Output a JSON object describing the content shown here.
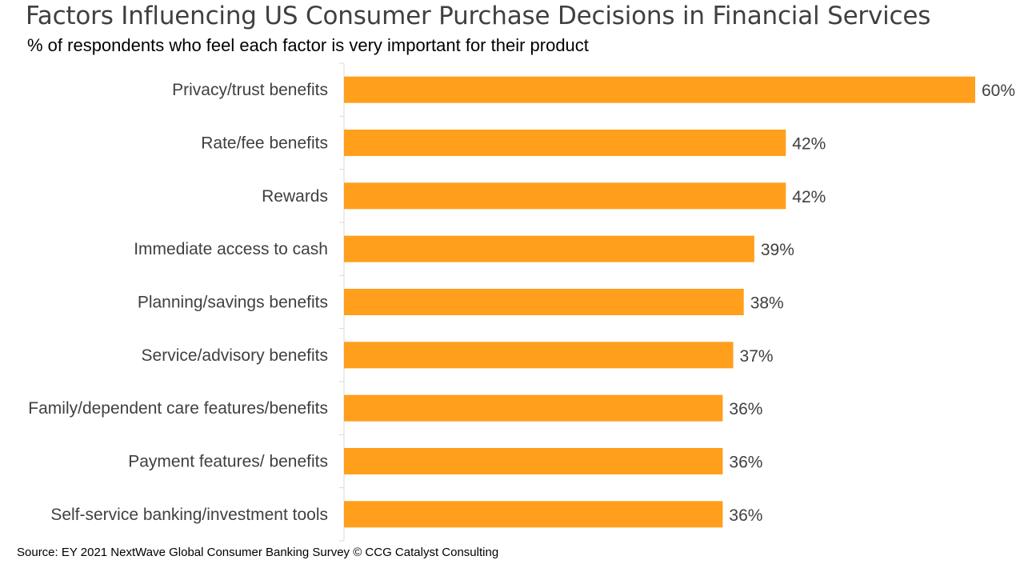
{
  "chart_data": {
    "type": "bar",
    "orientation": "horizontal",
    "title": "Factors Influencing US Consumer Purchase Decisions in Financial Services",
    "subtitle": "% of respondents who feel each factor is very important for their product",
    "categories": [
      "Privacy/trust benefits",
      "Rate/fee benefits",
      "Rewards",
      "Immediate access to cash",
      "Planning/savings benefits",
      "Service/advisory benefits",
      "Family/dependent care features/benefits",
      "Payment features/ benefits",
      "Self-service banking/investment tools"
    ],
    "values": [
      60,
      42,
      42,
      39,
      38,
      37,
      36,
      36,
      36
    ],
    "value_labels": [
      "60%",
      "42%",
      "42%",
      "39%",
      "38%",
      "37%",
      "36%",
      "36%",
      "36%"
    ],
    "xlim": [
      0,
      60
    ],
    "bar_color": "#FF9F1C",
    "grid": false,
    "legend": "none",
    "source": "Source: EY 2021 NextWave Global Consumer Banking Survey © CCG Catalyst Consulting"
  }
}
